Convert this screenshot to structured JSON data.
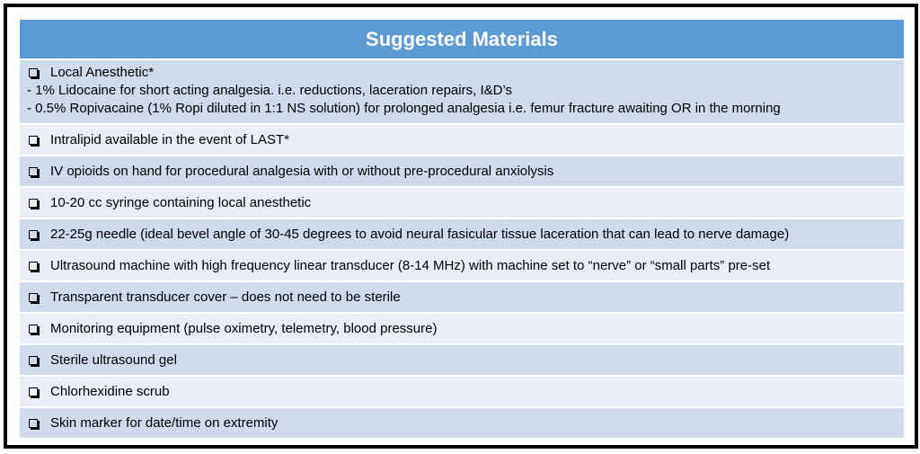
{
  "title": "Suggested Materials",
  "items": [
    {
      "label": "Local Anesthetic*",
      "sublines": [
        "- 1% Lidocaine for short acting analgesia.  i.e. reductions, laceration repairs, I&D’s",
        "- 0.5% Ropivacaine (1% Ropi diluted in 1:1 NS solution) for prolonged analgesia i.e. femur fracture awaiting OR in the morning"
      ]
    },
    {
      "label": "Intralipid available in the event of LAST*"
    },
    {
      "label": "IV opioids on hand for procedural analgesia with or without pre-procedural anxiolysis"
    },
    {
      "label": "10-20 cc syringe containing local anesthetic"
    },
    {
      "label": "22-25g needle (ideal bevel angle of 30-45 degrees to avoid neural fasicular tissue laceration that can lead to nerve damage)"
    },
    {
      "label": "Ultrasound machine with high frequency linear transducer (8-14 MHz) with machine set to “nerve” or “small parts” pre-set"
    },
    {
      "label": "Transparent transducer cover – does not need to be sterile"
    },
    {
      "label": "Monitoring equipment (pulse oximetry, telemetry, blood pressure)"
    },
    {
      "label": "Sterile ultrasound gel"
    },
    {
      "label": "Chlorhexidine scrub"
    },
    {
      "label": "Skin marker for date/time on extremity"
    }
  ]
}
